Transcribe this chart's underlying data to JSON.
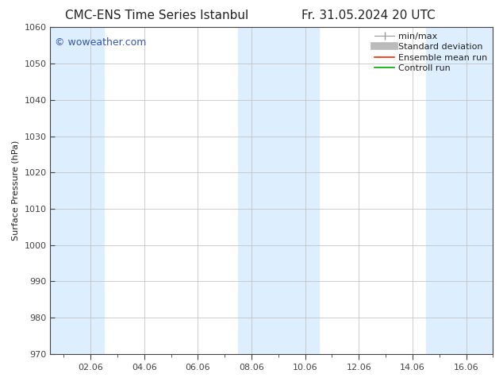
{
  "title_left": "CMC-ENS Time Series Istanbul",
  "title_right": "Fr. 31.05.2024 20 UTC",
  "ylabel": "Surface Pressure (hPa)",
  "ylim": [
    970,
    1060
  ],
  "yticks": [
    970,
    980,
    990,
    1000,
    1010,
    1020,
    1030,
    1040,
    1050,
    1060
  ],
  "xtick_labels": [
    "02.06",
    "04.06",
    "06.06",
    "08.06",
    "10.06",
    "12.06",
    "14.06",
    "16.06"
  ],
  "xtick_positions": [
    2,
    4,
    6,
    8,
    10,
    12,
    14,
    16
  ],
  "xlim": [
    0.5,
    17.0
  ],
  "background_color": "#ffffff",
  "plot_bg_color": "#ffffff",
  "watermark": "© woweather.com",
  "watermark_color": "#3355bb",
  "shaded_bands": [
    {
      "x_start": 0.5,
      "x_end": 2.5,
      "color": "#ddeeff"
    },
    {
      "x_start": 7.5,
      "x_end": 10.5,
      "color": "#ddeeff"
    },
    {
      "x_start": 14.5,
      "x_end": 17.0,
      "color": "#ddeeff"
    }
  ],
  "grid_color": "#bbbbbb",
  "grid_linestyle": "-",
  "tick_color": "#444444",
  "font_color": "#222222",
  "title_fontsize": 11,
  "axis_label_fontsize": 8,
  "tick_fontsize": 8,
  "legend_fontsize": 8
}
